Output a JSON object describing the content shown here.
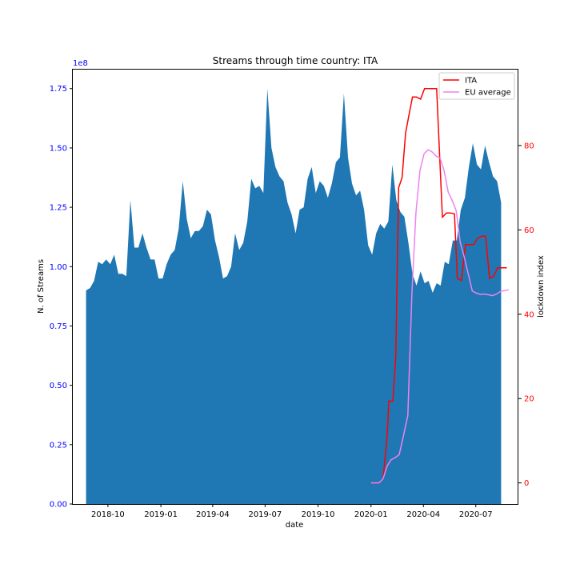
{
  "chart_data": {
    "type": "area+line",
    "title": "Streams through time country: ITA",
    "xlabel": "date",
    "ylabel_left": "N. of Streams",
    "ylabel_right": "lockdown index",
    "left_axis_multiplier": "1e8",
    "x_ticks": [
      "2018-10",
      "2019-01",
      "2019-04",
      "2019-07",
      "2019-10",
      "2020-01",
      "2020-04",
      "2020-07"
    ],
    "y_left_ticks": [
      "0.00",
      "0.25",
      "0.50",
      "0.75",
      "1.00",
      "1.25",
      "1.50",
      "1.75"
    ],
    "y_right_ticks": [
      "0",
      "20",
      "40",
      "60",
      "80"
    ],
    "y_left_range": [
      0,
      1.83
    ],
    "y_right_range": [
      -5,
      98
    ],
    "colors": {
      "area": "#1f77b4",
      "ita": "#ff0000",
      "eu": "#ee82ee",
      "left_axis": "#0000ff",
      "right_axis": "#ff0000"
    },
    "legend_position": "top-right",
    "area_series": {
      "name": "N. of Streams",
      "points": [
        [
          "2018-08-24",
          0.9
        ],
        [
          "2018-08-31",
          0.91
        ],
        [
          "2018-09-07",
          0.94
        ],
        [
          "2018-09-14",
          1.02
        ],
        [
          "2018-09-21",
          1.01
        ],
        [
          "2018-09-28",
          1.03
        ],
        [
          "2018-10-05",
          1.01
        ],
        [
          "2018-10-12",
          1.05
        ],
        [
          "2018-10-19",
          0.97
        ],
        [
          "2018-10-26",
          0.97
        ],
        [
          "2018-11-02",
          0.96
        ],
        [
          "2018-11-09",
          1.28
        ],
        [
          "2018-11-16",
          1.08
        ],
        [
          "2018-11-23",
          1.08
        ],
        [
          "2018-11-30",
          1.14
        ],
        [
          "2018-12-07",
          1.08
        ],
        [
          "2018-12-14",
          1.03
        ],
        [
          "2018-12-21",
          1.03
        ],
        [
          "2018-12-28",
          0.95
        ],
        [
          "2019-01-04",
          0.95
        ],
        [
          "2019-01-11",
          1.01
        ],
        [
          "2019-01-18",
          1.05
        ],
        [
          "2019-01-25",
          1.07
        ],
        [
          "2019-02-01",
          1.16
        ],
        [
          "2019-02-08",
          1.36
        ],
        [
          "2019-02-15",
          1.2
        ],
        [
          "2019-02-22",
          1.12
        ],
        [
          "2019-03-01",
          1.15
        ],
        [
          "2019-03-08",
          1.15
        ],
        [
          "2019-03-15",
          1.17
        ],
        [
          "2019-03-22",
          1.24
        ],
        [
          "2019-03-29",
          1.22
        ],
        [
          "2019-04-05",
          1.11
        ],
        [
          "2019-04-12",
          1.04
        ],
        [
          "2019-04-19",
          0.95
        ],
        [
          "2019-04-26",
          0.96
        ],
        [
          "2019-05-03",
          1.0
        ],
        [
          "2019-05-10",
          1.14
        ],
        [
          "2019-05-17",
          1.07
        ],
        [
          "2019-05-24",
          1.1
        ],
        [
          "2019-05-31",
          1.19
        ],
        [
          "2019-06-07",
          1.37
        ],
        [
          "2019-06-14",
          1.33
        ],
        [
          "2019-06-21",
          1.34
        ],
        [
          "2019-06-28",
          1.31
        ],
        [
          "2019-07-05",
          1.75
        ],
        [
          "2019-07-12",
          1.5
        ],
        [
          "2019-07-19",
          1.42
        ],
        [
          "2019-07-26",
          1.38
        ],
        [
          "2019-08-02",
          1.36
        ],
        [
          "2019-08-09",
          1.27
        ],
        [
          "2019-08-16",
          1.22
        ],
        [
          "2019-08-23",
          1.14
        ],
        [
          "2019-08-30",
          1.24
        ],
        [
          "2019-09-06",
          1.25
        ],
        [
          "2019-09-13",
          1.37
        ],
        [
          "2019-09-20",
          1.42
        ],
        [
          "2019-09-27",
          1.31
        ],
        [
          "2019-10-04",
          1.36
        ],
        [
          "2019-10-11",
          1.34
        ],
        [
          "2019-10-18",
          1.29
        ],
        [
          "2019-10-25",
          1.35
        ],
        [
          "2019-11-01",
          1.44
        ],
        [
          "2019-11-08",
          1.46
        ],
        [
          "2019-11-15",
          1.73
        ],
        [
          "2019-11-22",
          1.46
        ],
        [
          "2019-11-29",
          1.35
        ],
        [
          "2019-12-06",
          1.3
        ],
        [
          "2019-12-13",
          1.32
        ],
        [
          "2019-12-20",
          1.24
        ],
        [
          "2019-12-27",
          1.09
        ],
        [
          "2020-01-03",
          1.05
        ],
        [
          "2020-01-10",
          1.14
        ],
        [
          "2020-01-17",
          1.18
        ],
        [
          "2020-01-24",
          1.16
        ],
        [
          "2020-01-31",
          1.19
        ],
        [
          "2020-02-07",
          1.43
        ],
        [
          "2020-02-14",
          1.28
        ],
        [
          "2020-02-21",
          1.23
        ],
        [
          "2020-02-28",
          1.21
        ],
        [
          "2020-03-06",
          1.1
        ],
        [
          "2020-03-13",
          0.97
        ],
        [
          "2020-03-20",
          0.92
        ],
        [
          "2020-03-27",
          0.98
        ],
        [
          "2020-04-03",
          0.93
        ],
        [
          "2020-04-10",
          0.94
        ],
        [
          "2020-04-17",
          0.89
        ],
        [
          "2020-04-24",
          0.93
        ],
        [
          "2020-05-01",
          0.92
        ],
        [
          "2020-05-08",
          1.02
        ],
        [
          "2020-05-15",
          1.01
        ],
        [
          "2020-05-22",
          1.11
        ],
        [
          "2020-05-29",
          1.11
        ],
        [
          "2020-06-05",
          1.24
        ],
        [
          "2020-06-12",
          1.29
        ],
        [
          "2020-06-19",
          1.42
        ],
        [
          "2020-06-26",
          1.52
        ],
        [
          "2020-07-03",
          1.43
        ],
        [
          "2020-07-10",
          1.41
        ],
        [
          "2020-07-17",
          1.51
        ],
        [
          "2020-07-24",
          1.44
        ],
        [
          "2020-07-31",
          1.38
        ],
        [
          "2020-08-07",
          1.36
        ],
        [
          "2020-08-14",
          1.27
        ]
      ]
    },
    "line_series": [
      {
        "name": "ITA",
        "points": [
          [
            "2020-01-01",
            0
          ],
          [
            "2020-01-15",
            0
          ],
          [
            "2020-01-22",
            1
          ],
          [
            "2020-01-29",
            11
          ],
          [
            "2020-02-01",
            19.4
          ],
          [
            "2020-02-08",
            19.4
          ],
          [
            "2020-02-13",
            30
          ],
          [
            "2020-02-18",
            70
          ],
          [
            "2020-02-24",
            72.4
          ],
          [
            "2020-03-01",
            83
          ],
          [
            "2020-03-08",
            88
          ],
          [
            "2020-03-13",
            91.5
          ],
          [
            "2020-03-20",
            91.5
          ],
          [
            "2020-03-27",
            91
          ],
          [
            "2020-04-03",
            93.5
          ],
          [
            "2020-04-10",
            93.5
          ],
          [
            "2020-04-17",
            93.5
          ],
          [
            "2020-04-24",
            93.5
          ],
          [
            "2020-05-04",
            63
          ],
          [
            "2020-05-11",
            64
          ],
          [
            "2020-05-18",
            64
          ],
          [
            "2020-05-25",
            63.8
          ],
          [
            "2020-05-30",
            48.5
          ],
          [
            "2020-06-06",
            48
          ],
          [
            "2020-06-13",
            56.5
          ],
          [
            "2020-06-20",
            56.5
          ],
          [
            "2020-06-27",
            56.5
          ],
          [
            "2020-07-04",
            58
          ],
          [
            "2020-07-11",
            58.5
          ],
          [
            "2020-07-18",
            58.5
          ],
          [
            "2020-07-25",
            48.5
          ],
          [
            "2020-08-01",
            49
          ],
          [
            "2020-08-08",
            51
          ],
          [
            "2020-08-15",
            51
          ],
          [
            "2020-08-24",
            51
          ]
        ]
      },
      {
        "name": "EU average",
        "points": [
          [
            "2020-01-01",
            0
          ],
          [
            "2020-01-08",
            0
          ],
          [
            "2020-01-15",
            0
          ],
          [
            "2020-01-22",
            1
          ],
          [
            "2020-01-29",
            4
          ],
          [
            "2020-02-05",
            5.5
          ],
          [
            "2020-02-12",
            6
          ],
          [
            "2020-02-19",
            6.7
          ],
          [
            "2020-02-26",
            11
          ],
          [
            "2020-03-05",
            16
          ],
          [
            "2020-03-12",
            45
          ],
          [
            "2020-03-19",
            64
          ],
          [
            "2020-03-26",
            74
          ],
          [
            "2020-04-02",
            78
          ],
          [
            "2020-04-09",
            79
          ],
          [
            "2020-04-16",
            78.5
          ],
          [
            "2020-04-23",
            77.5
          ],
          [
            "2020-04-30",
            77
          ],
          [
            "2020-05-07",
            74
          ],
          [
            "2020-05-14",
            69
          ],
          [
            "2020-05-21",
            67
          ],
          [
            "2020-05-28",
            64.5
          ],
          [
            "2020-06-04",
            57
          ],
          [
            "2020-06-11",
            53.5
          ],
          [
            "2020-06-18",
            49.5
          ],
          [
            "2020-06-25",
            45.5
          ],
          [
            "2020-07-02",
            45
          ],
          [
            "2020-07-09",
            44.7
          ],
          [
            "2020-07-16",
            44.8
          ],
          [
            "2020-07-23",
            44.6
          ],
          [
            "2020-07-30",
            44.4
          ],
          [
            "2020-08-06",
            44.8
          ],
          [
            "2020-08-13",
            45.4
          ],
          [
            "2020-08-20",
            45.6
          ],
          [
            "2020-08-27",
            45.8
          ]
        ]
      }
    ],
    "x_range": [
      "2018-08-01",
      "2020-09-13"
    ]
  }
}
